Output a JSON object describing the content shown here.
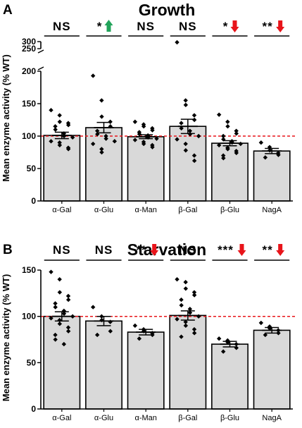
{
  "chart_data": [
    {
      "panel": "A",
      "type": "bar",
      "title": "Growth",
      "ylabel": "Mean enzyme activity (% WT)",
      "xlabel": "",
      "y_axis_break": true,
      "ylim": [
        0,
        300
      ],
      "y_ticks": [
        0,
        50,
        100,
        150,
        200,
        250,
        300
      ],
      "reference_line": {
        "y": 100,
        "color": "#e8141a",
        "style": "dashed"
      },
      "bar_color": "#d9d9d9",
      "categories": [
        "α-Gal",
        "α-Glu",
        "α-Man",
        "β-Gal",
        "β-Glu",
        "NagA"
      ],
      "values": [
        101,
        113,
        99,
        115,
        89,
        77
      ],
      "sem": [
        5,
        8,
        3,
        11,
        4,
        4
      ],
      "significance": [
        "NS",
        "*",
        "NS",
        "NS",
        "*",
        "**"
      ],
      "arrows": [
        "",
        "up",
        "",
        "",
        "down",
        "down"
      ],
      "points": [
        [
          140,
          132,
          122,
          120,
          117,
          115,
          110,
          104,
          100,
          98,
          92,
          90,
          86,
          82,
          80
        ],
        [
          193,
          155,
          130,
          122,
          115,
          108,
          103,
          100,
          96,
          92,
          88,
          80,
          75
        ],
        [
          122,
          118,
          115,
          112,
          109,
          106,
          103,
          101,
          98,
          96,
          94,
          91,
          88,
          86,
          83
        ],
        [
          295,
          155,
          148,
          132,
          125,
          120,
          112,
          108,
          103,
          100,
          95,
          88,
          78,
          70,
          62
        ],
        [
          133,
          122,
          115,
          108,
          104,
          100,
          95,
          92,
          90,
          88,
          86,
          82,
          80,
          77,
          74,
          70,
          66
        ],
        [
          90,
          83,
          78,
          74,
          71,
          67
        ]
      ]
    },
    {
      "panel": "B",
      "type": "bar",
      "title": "Starvation",
      "ylabel": "Mean enzyme activity (% WT)",
      "xlabel": "",
      "ylim": [
        0,
        150
      ],
      "y_ticks": [
        0,
        50,
        100,
        150
      ],
      "reference_line": {
        "y": 100,
        "color": "#e8141a",
        "style": "dashed"
      },
      "bar_color": "#d9d9d9",
      "categories": [
        "α-Gal",
        "α-Glu",
        "α-Man",
        "β-Gal",
        "β-Glu",
        "NagA"
      ],
      "values": [
        100,
        95,
        83,
        101,
        70,
        85
      ],
      "sem": [
        5,
        5,
        3,
        5,
        3,
        3
      ],
      "significance": [
        "NS",
        "NS",
        "**",
        "NS",
        "***",
        "**"
      ],
      "arrows": [
        "",
        "",
        "down",
        "",
        "down",
        "down"
      ],
      "points": [
        [
          148,
          140,
          126,
          122,
          118,
          114,
          110,
          106,
          103,
          100,
          98,
          96,
          92,
          88,
          84,
          80,
          75,
          70
        ],
        [
          110,
          100,
          96,
          94,
          84,
          80
        ],
        [
          90,
          86,
          84,
          82,
          80,
          76
        ],
        [
          140,
          137,
          130,
          126,
          123,
          118,
          112,
          108,
          104,
          100,
          97,
          94,
          90,
          86,
          82,
          78
        ],
        [
          76,
          74,
          72,
          70,
          66,
          62
        ],
        [
          93,
          89,
          87,
          85,
          82,
          80
        ]
      ]
    }
  ],
  "colors": {
    "up_arrow": "#22a35a",
    "down_arrow": "#e8141a"
  }
}
